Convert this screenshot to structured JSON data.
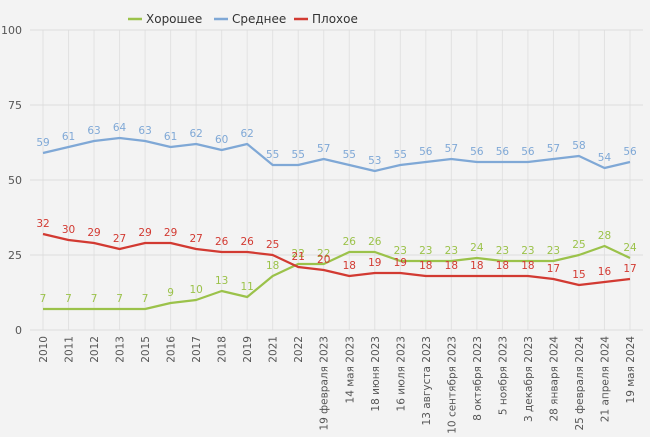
{
  "chart_data": {
    "type": "line",
    "title": "",
    "xlabel": "",
    "ylabel": "",
    "ylim": [
      0,
      100
    ],
    "yticks": [
      0,
      25,
      50,
      75,
      100
    ],
    "grid": true,
    "legend_position": "top-center",
    "categories": [
      "2010",
      "2011",
      "2012",
      "2013",
      "2015",
      "2016",
      "2017",
      "2018",
      "2019",
      "2021",
      "2022",
      "19 февраля 2023",
      "14 мая 2023",
      "18 июня 2023",
      "16 июля 2023",
      "13 августа 2023",
      "10 сентября 2023",
      "8 октября 2023",
      "5 ноября 2023",
      "3 декабря 2023",
      "28 января 2024",
      "25 февраля 2024",
      "21 апреля 2024",
      "19 мая 2024"
    ],
    "series": [
      {
        "name": "Хорошее",
        "color": "#9bc24a",
        "values": [
          7,
          7,
          7,
          7,
          7,
          9,
          10,
          13,
          11,
          18,
          22,
          22,
          26,
          26,
          23,
          23,
          23,
          24,
          23,
          23,
          23,
          25,
          28,
          24
        ]
      },
      {
        "name": "Среднее",
        "color": "#7fa8d6",
        "values": [
          59,
          61,
          63,
          64,
          63,
          61,
          62,
          60,
          62,
          55,
          55,
          57,
          55,
          53,
          55,
          56,
          57,
          56,
          56,
          56,
          57,
          58,
          54,
          56
        ]
      },
      {
        "name": "Плохое",
        "color": "#d23a32",
        "values": [
          32,
          30,
          29,
          27,
          29,
          29,
          27,
          26,
          26,
          25,
          21,
          20,
          18,
          19,
          19,
          18,
          18,
          18,
          18,
          18,
          17,
          15,
          16,
          17
        ]
      }
    ]
  }
}
